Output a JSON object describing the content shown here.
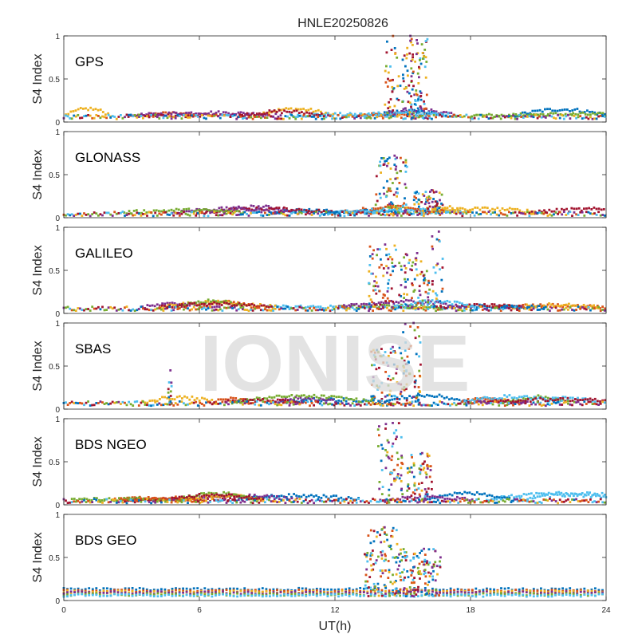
{
  "figure_title": "HNLE20250826",
  "watermark": "IONISE",
  "colors": {
    "series": [
      "#0072BD",
      "#D95319",
      "#EDB120",
      "#7E2F8E",
      "#77AC30",
      "#4DBEEE",
      "#A2142F"
    ],
    "axis": "#262626",
    "watermark": "#d9d9d9"
  },
  "chart_data": [
    {
      "type": "scatter",
      "panel_label": "GPS",
      "ylabel": "S4 Index",
      "xlim": [
        0,
        24
      ],
      "ylim": [
        0,
        1
      ],
      "xticks": [
        0,
        6,
        12,
        18,
        24
      ],
      "yticks": [
        0,
        0.5,
        1
      ],
      "ytick_labels": [
        "0",
        "0.5",
        "1"
      ],
      "baseline": 0.1,
      "spikes": [
        {
          "x0": 14.2,
          "x1": 16.1,
          "max": 1.0
        },
        {
          "x0": 15.2,
          "x1": 15.9,
          "max": 0.95
        }
      ]
    },
    {
      "type": "scatter",
      "panel_label": "GLONASS",
      "ylabel": "S4 Index",
      "xlim": [
        0,
        24
      ],
      "ylim": [
        0,
        1
      ],
      "xticks": [
        0,
        6,
        12,
        18,
        24
      ],
      "yticks": [
        0,
        0.5,
        1
      ],
      "ytick_labels": [
        "0",
        "0.5",
        "1"
      ],
      "baseline": 0.07,
      "spikes": [
        {
          "x0": 13.8,
          "x1": 15.2,
          "max": 0.72
        },
        {
          "x0": 15.5,
          "x1": 16.8,
          "max": 0.32
        }
      ]
    },
    {
      "type": "scatter",
      "panel_label": "GALILEO",
      "ylabel": "S4 Index",
      "xlim": [
        0,
        24
      ],
      "ylim": [
        0,
        1
      ],
      "xticks": [
        0,
        6,
        12,
        18,
        24
      ],
      "yticks": [
        0,
        0.5,
        1
      ],
      "ytick_labels": [
        "0",
        "0.5",
        "1"
      ],
      "baseline": 0.09,
      "spikes": [
        {
          "x0": 13.5,
          "x1": 14.7,
          "max": 0.8
        },
        {
          "x0": 14.8,
          "x1": 16.2,
          "max": 0.7
        },
        {
          "x0": 16.3,
          "x1": 16.8,
          "max": 0.95
        }
      ]
    },
    {
      "type": "scatter",
      "panel_label": "SBAS",
      "ylabel": "S4 Index",
      "xlim": [
        0,
        24
      ],
      "ylim": [
        0,
        1
      ],
      "xticks": [
        0,
        6,
        12,
        18,
        24
      ],
      "yticks": [
        0,
        0.5,
        1
      ],
      "ytick_labels": [
        "0",
        "0.5",
        "1"
      ],
      "baseline": 0.11,
      "spikes": [
        {
          "x0": 13.6,
          "x1": 15.2,
          "max": 0.72
        },
        {
          "x0": 15.0,
          "x1": 15.8,
          "max": 1.0
        },
        {
          "x0": 4.6,
          "x1": 4.8,
          "max": 0.45
        }
      ]
    },
    {
      "type": "scatter",
      "panel_label": "BDS NGEO",
      "ylabel": "S4 Index",
      "xlim": [
        0,
        24
      ],
      "ylim": [
        0,
        1
      ],
      "xticks": [
        0,
        6,
        12,
        18,
        24
      ],
      "yticks": [
        0,
        0.5,
        1
      ],
      "ytick_labels": [
        "0",
        "0.5",
        "1"
      ],
      "baseline": 0.07,
      "spikes": [
        {
          "x0": 13.9,
          "x1": 15.0,
          "max": 0.95
        },
        {
          "x0": 15.2,
          "x1": 16.3,
          "max": 0.6
        }
      ]
    },
    {
      "type": "scatter",
      "panel_label": "BDS GEO",
      "ylabel": "S4 Index",
      "xlim": [
        0,
        24
      ],
      "ylim": [
        0,
        1
      ],
      "xticks": [
        0,
        6,
        12,
        18,
        24
      ],
      "yticks": [
        0,
        0.5,
        1
      ],
      "ytick_labels": [
        "0",
        "0.5",
        "1"
      ],
      "baseline": 0.12,
      "geo_levels": [
        0.13,
        0.11,
        0.1,
        0.09,
        0.07,
        0.06
      ],
      "spikes": [
        {
          "x0": 13.3,
          "x1": 14.8,
          "max": 0.85
        },
        {
          "x0": 14.8,
          "x1": 16.7,
          "max": 0.6
        }
      ],
      "xlabel": "UT(h)",
      "xtick_labels": [
        "0",
        "6",
        "12",
        "18",
        "24"
      ]
    }
  ]
}
